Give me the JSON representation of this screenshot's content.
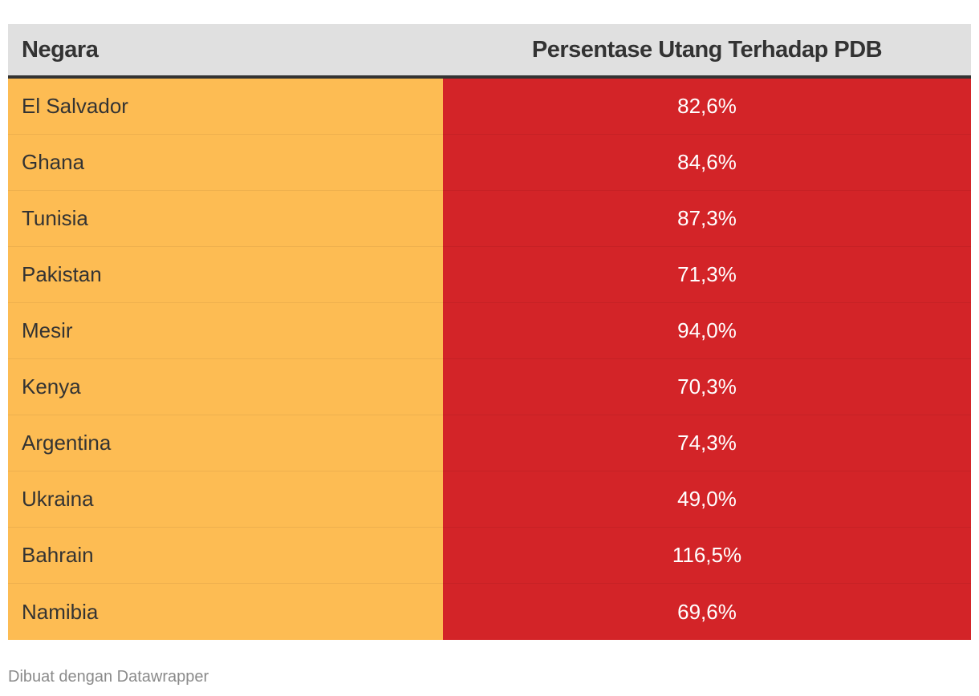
{
  "footer": "Dibuat dengan Datawrapper",
  "colors": {
    "header_bg": "#e0e0e0",
    "country_cell_bg": "#fdbc53",
    "value_cell_bg": "#d32428",
    "header_text": "#333333",
    "value_text": "#ffffff"
  },
  "chart_data": {
    "type": "table",
    "columns": [
      "Negara",
      "Persentase Utang Terhadap PDB"
    ],
    "rows": [
      {
        "country": "El Salvador",
        "value_label": "82,6%",
        "value": 82.6
      },
      {
        "country": "Ghana",
        "value_label": "84,6%",
        "value": 84.6
      },
      {
        "country": "Tunisia",
        "value_label": "87,3%",
        "value": 87.3
      },
      {
        "country": "Pakistan",
        "value_label": "71,3%",
        "value": 71.3
      },
      {
        "country": "Mesir",
        "value_label": "94,0%",
        "value": 94.0
      },
      {
        "country": "Kenya",
        "value_label": "70,3%",
        "value": 70.3
      },
      {
        "country": "Argentina",
        "value_label": "74,3%",
        "value": 74.3
      },
      {
        "country": "Ukraina",
        "value_label": "49,0%",
        "value": 49.0
      },
      {
        "country": "Bahrain",
        "value_label": "116,5%",
        "value": 116.5
      },
      {
        "country": "Namibia",
        "value_label": "69,6%",
        "value": 69.6
      }
    ]
  }
}
